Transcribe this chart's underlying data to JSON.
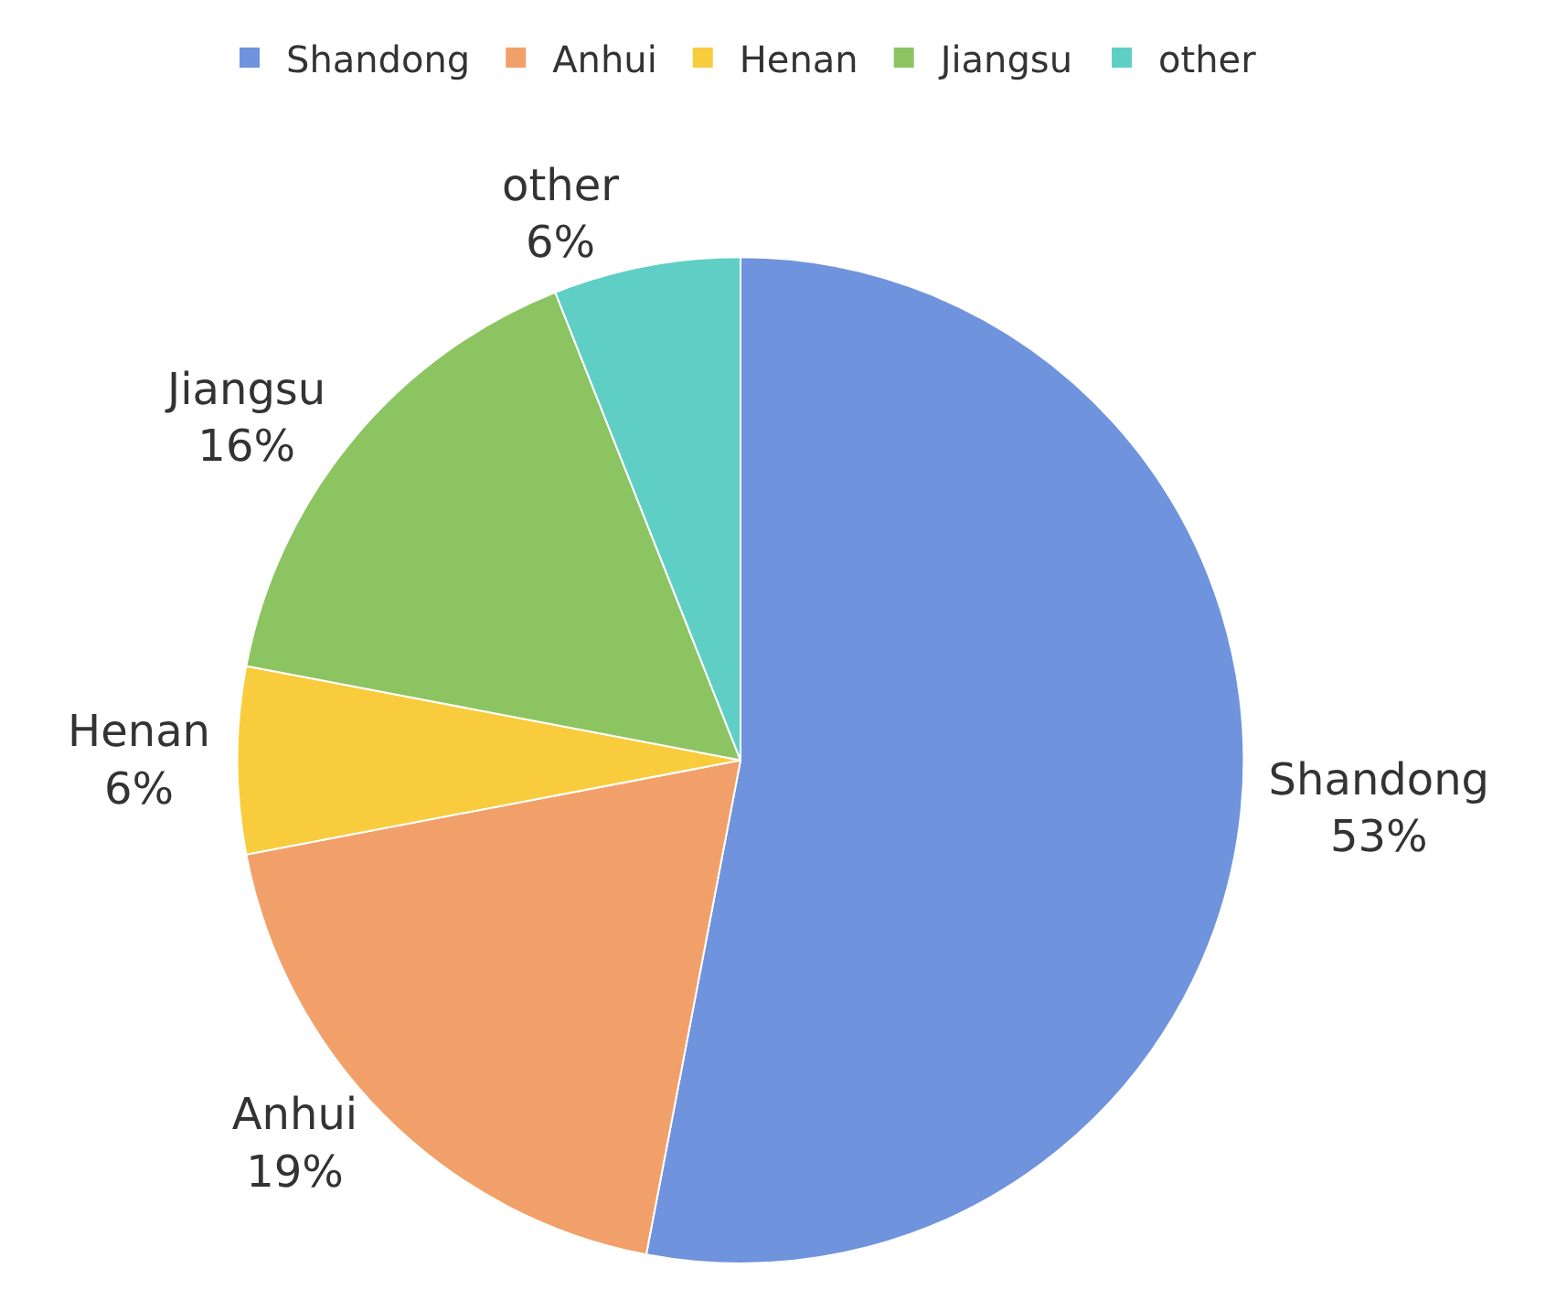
{
  "chart_data": {
    "type": "pie",
    "categories": [
      "Shandong",
      "Anhui",
      "Henan",
      "Jiangsu",
      "other"
    ],
    "values": [
      53,
      19,
      6,
      16,
      6
    ],
    "value_labels": [
      "53%",
      "19%",
      "6%",
      "16%",
      "6%"
    ],
    "colors": [
      "#6f93dc",
      "#f2a06a",
      "#f8cc3c",
      "#8cc462",
      "#5fcfc6"
    ],
    "legend": "top"
  }
}
